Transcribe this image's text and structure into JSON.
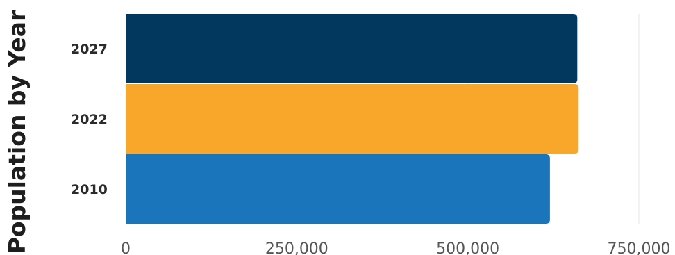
{
  "chart_data": {
    "type": "bar",
    "orientation": "horizontal",
    "title": "",
    "xlabel": "",
    "ylabel": "Population by Year",
    "categories": [
      "2027",
      "2022",
      "2010"
    ],
    "values": [
      660000,
      662000,
      620000
    ],
    "colors": [
      "#02385d",
      "#f8a72b",
      "#1b75bb"
    ],
    "xlim": [
      0,
      750000
    ],
    "xticks": [
      0,
      250000,
      500000,
      750000
    ],
    "xtick_labels": [
      "0",
      "250,000",
      "500,000",
      "750,000"
    ],
    "grid": true,
    "legend": "none"
  }
}
